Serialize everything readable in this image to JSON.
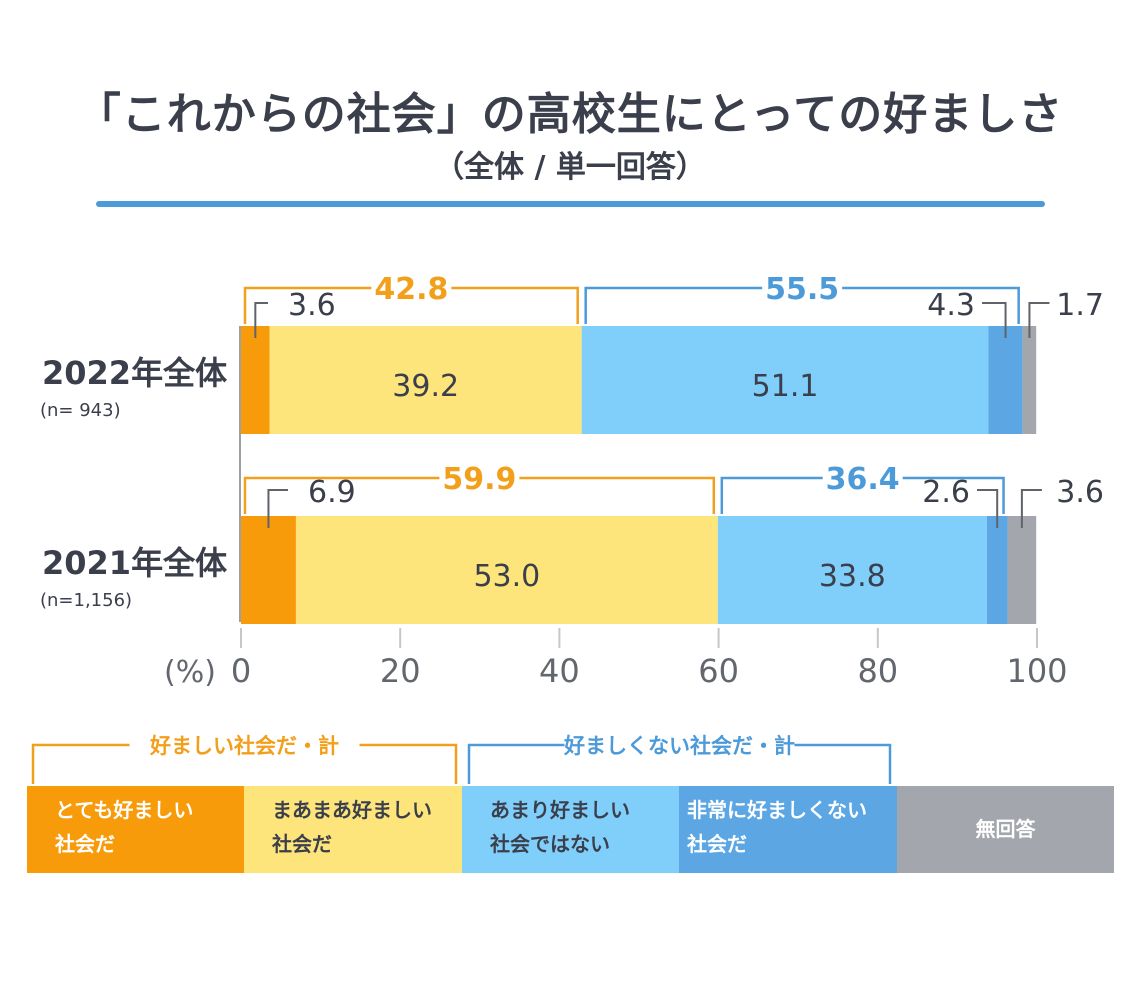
{
  "title": "「これからの社会」の高校生にとっての好ましさ",
  "subtitle": "（全体 / 単一回答）",
  "chart_data": {
    "type": "bar",
    "orientation": "horizontal",
    "stacked": true,
    "unit_label": "(%)",
    "xlim": [
      0,
      100
    ],
    "xticks": [
      "0",
      "20",
      "40",
      "60",
      "80",
      "100"
    ],
    "rows": [
      {
        "label": "2022年全体",
        "n": "(n= 943)",
        "values": [
          3.6,
          39.2,
          51.1,
          4.3,
          1.7
        ],
        "labels": [
          "3.6",
          "39.2",
          "51.1",
          "4.3",
          "1.7"
        ],
        "group_totals": [
          "42.8",
          "55.5"
        ]
      },
      {
        "label": "2021年全体",
        "n": "(n=1,156)",
        "values": [
          6.9,
          53.0,
          33.8,
          2.6,
          3.6
        ],
        "labels": [
          "6.9",
          "53.0",
          "33.8",
          "2.6",
          "3.6"
        ],
        "group_totals": [
          "59.9",
          "36.4"
        ]
      }
    ],
    "categories": [
      {
        "line1": "とても好ましい",
        "line2": "社会だ",
        "color": "#f79b0b",
        "text": "#ffffff"
      },
      {
        "line1": "まあまあ好ましい",
        "line2": "社会だ",
        "color": "#fde57c",
        "text": "#3a3f4b"
      },
      {
        "line1": "あまり好ましい",
        "line2": "社会ではない",
        "color": "#80cffb",
        "text": "#3a3f4b"
      },
      {
        "line1": "非常に好ましくない",
        "line2": "社会だ",
        "color": "#5ca6e3",
        "text": "#ffffff"
      },
      {
        "line1": "無回答",
        "line2": "",
        "color": "#a3a7ad",
        "text": "#ffffff"
      }
    ],
    "groups": [
      {
        "label": "好ましい社会だ・計",
        "color": "#f2a01c"
      },
      {
        "label": "好ましくない社会だ・計",
        "color": "#4d9ad8"
      }
    ]
  }
}
